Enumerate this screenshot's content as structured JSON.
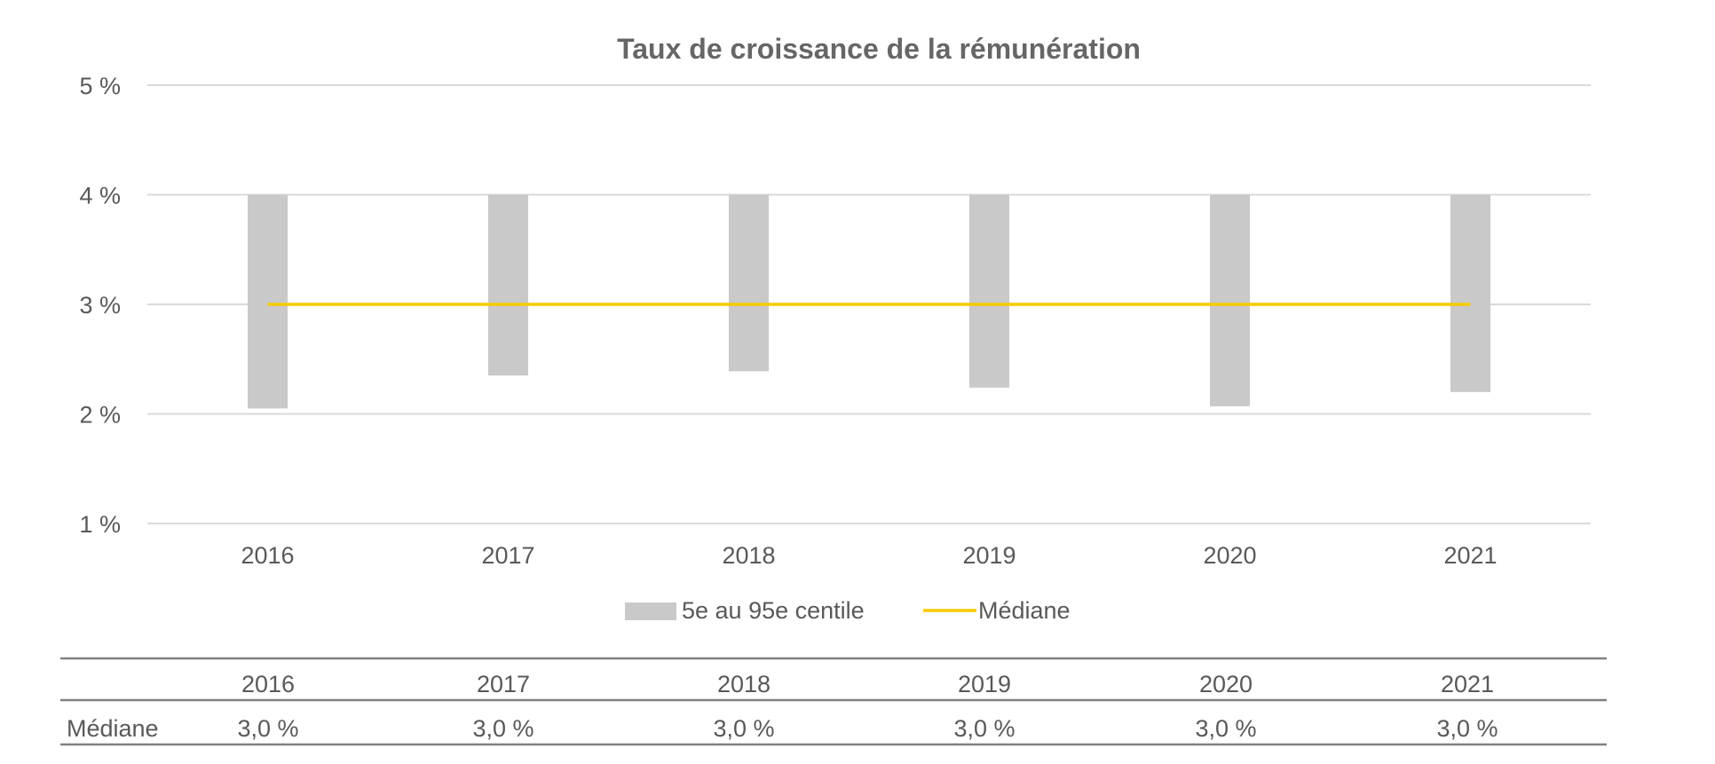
{
  "chart_data": {
    "type": "bar",
    "title": "Taux de croissance de la rémunération",
    "xlabel": "",
    "ylabel": "",
    "ylim": [
      1,
      5
    ],
    "yticks": [
      5,
      4,
      3,
      2,
      1
    ],
    "ytick_labels": [
      "5 %",
      "4 %",
      "3 %",
      "2 %",
      "1 %"
    ],
    "grid": true,
    "legend_position": "bottom",
    "categories": [
      "2016",
      "2017",
      "2018",
      "2019",
      "2020",
      "2021"
    ],
    "series": [
      {
        "name": "5e au 95e centile",
        "kind": "floating-bar",
        "color": "#c9c9c9",
        "low": [
          2.05,
          2.35,
          2.39,
          2.24,
          2.07,
          2.2
        ],
        "high": [
          4.0,
          4.0,
          4.0,
          4.0,
          4.0,
          4.0
        ]
      },
      {
        "name": "Médiane",
        "kind": "line",
        "color": "#f5cc00",
        "values": [
          3.0,
          3.0,
          3.0,
          3.0,
          3.0,
          3.0
        ]
      }
    ]
  },
  "table": {
    "columns": [
      "2016",
      "2017",
      "2018",
      "2019",
      "2020",
      "2021"
    ],
    "rows": [
      {
        "label": "Médiane",
        "values": [
          "3,0 %",
          "3,0 %",
          "3,0 %",
          "3,0 %",
          "3,0 %",
          "3,0 %"
        ]
      }
    ]
  }
}
